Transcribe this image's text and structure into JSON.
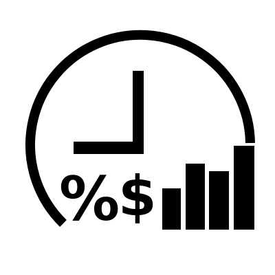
{
  "icon": {
    "name": "time-money-growth-icon",
    "foreground_color": "#000000",
    "background_color": "#ffffff",
    "parts": [
      "clock-icon",
      "percent-sign-icon",
      "dollar-sign-icon",
      "bar-chart-icon"
    ]
  },
  "symbols": {
    "percent": "%",
    "dollar": "$"
  }
}
